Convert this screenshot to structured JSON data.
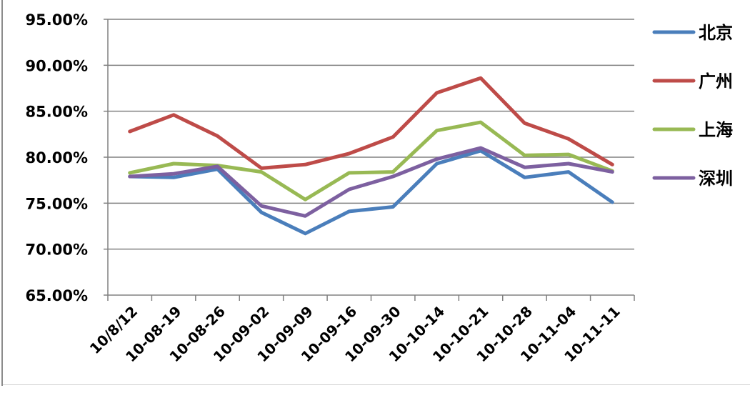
{
  "chart_data": {
    "type": "line",
    "title": "",
    "xlabel": "",
    "ylabel": "",
    "categories": [
      "10/8/12",
      "10-08-19",
      "10-08-26",
      "10-09-02",
      "10-09-09",
      "10-09-16",
      "10-09-30",
      "10-10-14",
      "10-10-21",
      "10-10-28",
      "10-11-04",
      "10-11-11"
    ],
    "ylim": [
      65,
      95
    ],
    "yticks": [
      65,
      70,
      75,
      80,
      85,
      90,
      95
    ],
    "ytick_labels": [
      "65.00%",
      "70.00%",
      "75.00%",
      "80.00%",
      "85.00%",
      "90.00%",
      "95.00%"
    ],
    "grid": "horizontal",
    "legend_position": "right",
    "series": [
      {
        "name": "北京",
        "color": "#4a7ebb",
        "values": [
          77.9,
          77.8,
          78.7,
          74.0,
          71.7,
          74.1,
          74.6,
          79.3,
          80.7,
          77.8,
          78.4,
          75.1
        ]
      },
      {
        "name": "广州",
        "color": "#be4b48",
        "values": [
          82.8,
          84.6,
          82.3,
          78.8,
          79.2,
          80.4,
          82.2,
          87.0,
          88.6,
          83.7,
          82.0,
          79.2
        ]
      },
      {
        "name": "上海",
        "color": "#98b954",
        "values": [
          78.3,
          79.3,
          79.1,
          78.4,
          75.4,
          78.3,
          78.4,
          82.9,
          83.8,
          80.2,
          80.3,
          78.5
        ]
      },
      {
        "name": "深圳",
        "color": "#7d60a0",
        "values": [
          77.9,
          78.2,
          79.0,
          74.7,
          73.6,
          76.5,
          77.9,
          79.8,
          81.0,
          78.9,
          79.3,
          78.4
        ]
      }
    ]
  }
}
